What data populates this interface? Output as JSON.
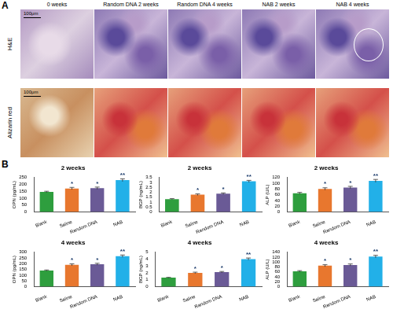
{
  "panel_labels": [
    "A",
    "B"
  ],
  "images": {
    "columns": [
      "0 weeks",
      "Random DNA 2 weeks",
      "Random DNA 4 weeks",
      "NAB 2 weeks",
      "NAB 4 weeks"
    ],
    "rows": [
      "H&E",
      "Alizarin red"
    ],
    "scale_bar": "100μm"
  },
  "chart_data": [
    {
      "type": "bar",
      "title": "2 weeks",
      "y_label": "OPN (pg/mL)",
      "categories": [
        "Blank",
        "Saline",
        "Random DNA",
        "NAB"
      ],
      "values": [
        145,
        170,
        172,
        230
      ],
      "errors": [
        5,
        8,
        8,
        10
      ],
      "significance": [
        null,
        "*",
        "*",
        "**"
      ],
      "colors": [
        "#2e9e3e",
        "#e8772e",
        "#6a5a96",
        "#22b0e8"
      ],
      "ylim": [
        0,
        250
      ],
      "yticks": [
        0,
        50,
        100,
        150,
        200,
        250
      ],
      "grid": false
    },
    {
      "type": "bar",
      "title": "2 weeks",
      "y_label": "BGP (ng/mL)",
      "categories": [
        "Blank",
        "Saline",
        "Random DNA",
        "NAB"
      ],
      "values": [
        1.3,
        1.75,
        1.85,
        3.1
      ],
      "errors": [
        0.05,
        0.08,
        0.08,
        0.1
      ],
      "significance": [
        null,
        "*",
        "*",
        "**"
      ],
      "colors": [
        "#2e9e3e",
        "#e8772e",
        "#6a5a96",
        "#22b0e8"
      ],
      "ylim": [
        0,
        3.5
      ],
      "yticks": [
        0,
        0.5,
        1,
        1.5,
        2,
        2.5,
        3,
        3.5
      ],
      "grid": false
    },
    {
      "type": "bar",
      "title": "2 weeks",
      "y_label": "ALP (U/L)",
      "categories": [
        "Blank",
        "Saline",
        "Random DNA",
        "NAB"
      ],
      "values": [
        65,
        80,
        85,
        108
      ],
      "errors": [
        3,
        4,
        4,
        5
      ],
      "significance": [
        null,
        "*",
        "*",
        "**"
      ],
      "colors": [
        "#2e9e3e",
        "#e8772e",
        "#6a5a96",
        "#22b0e8"
      ],
      "ylim": [
        0,
        120
      ],
      "yticks": [
        0,
        20,
        40,
        60,
        80,
        100,
        120
      ],
      "grid": false
    },
    {
      "type": "bar",
      "title": "4 weeks",
      "y_label": "OPN (pg/mL)",
      "categories": [
        "Blank",
        "Saline",
        "Random DNA",
        "NAB"
      ],
      "values": [
        140,
        190,
        195,
        265
      ],
      "errors": [
        5,
        8,
        8,
        10
      ],
      "significance": [
        null,
        "*",
        "*",
        "**"
      ],
      "colors": [
        "#2e9e3e",
        "#e8772e",
        "#6a5a96",
        "#22b0e8"
      ],
      "ylim": [
        0,
        300
      ],
      "yticks": [
        0,
        50,
        100,
        150,
        200,
        250,
        300
      ],
      "grid": false
    },
    {
      "type": "bar",
      "title": "4 weeks",
      "y_label": "BGP (ng/mL)",
      "categories": [
        "Blank",
        "Saline",
        "Random DNA",
        "NAB"
      ],
      "values": [
        1.3,
        2.0,
        2.1,
        4.0
      ],
      "errors": [
        0.05,
        0.1,
        0.1,
        0.15
      ],
      "significance": [
        null,
        "*",
        "*",
        "**"
      ],
      "colors": [
        "#2e9e3e",
        "#e8772e",
        "#6a5a96",
        "#22b0e8"
      ],
      "ylim": [
        0,
        5
      ],
      "yticks": [
        0,
        1,
        2,
        3,
        4,
        5
      ],
      "grid": false
    },
    {
      "type": "bar",
      "title": "4 weeks",
      "y_label": "ALP (U/L)",
      "categories": [
        "Blank",
        "Saline",
        "Random DNA",
        "NAB"
      ],
      "values": [
        62,
        85,
        88,
        122
      ],
      "errors": [
        3,
        4,
        4,
        5
      ],
      "significance": [
        null,
        "*",
        "*",
        "**"
      ],
      "colors": [
        "#2e9e3e",
        "#e8772e",
        "#6a5a96",
        "#22b0e8"
      ],
      "ylim": [
        0,
        140
      ],
      "yticks": [
        0,
        20,
        40,
        60,
        80,
        100,
        120,
        140
      ],
      "grid": false
    }
  ]
}
